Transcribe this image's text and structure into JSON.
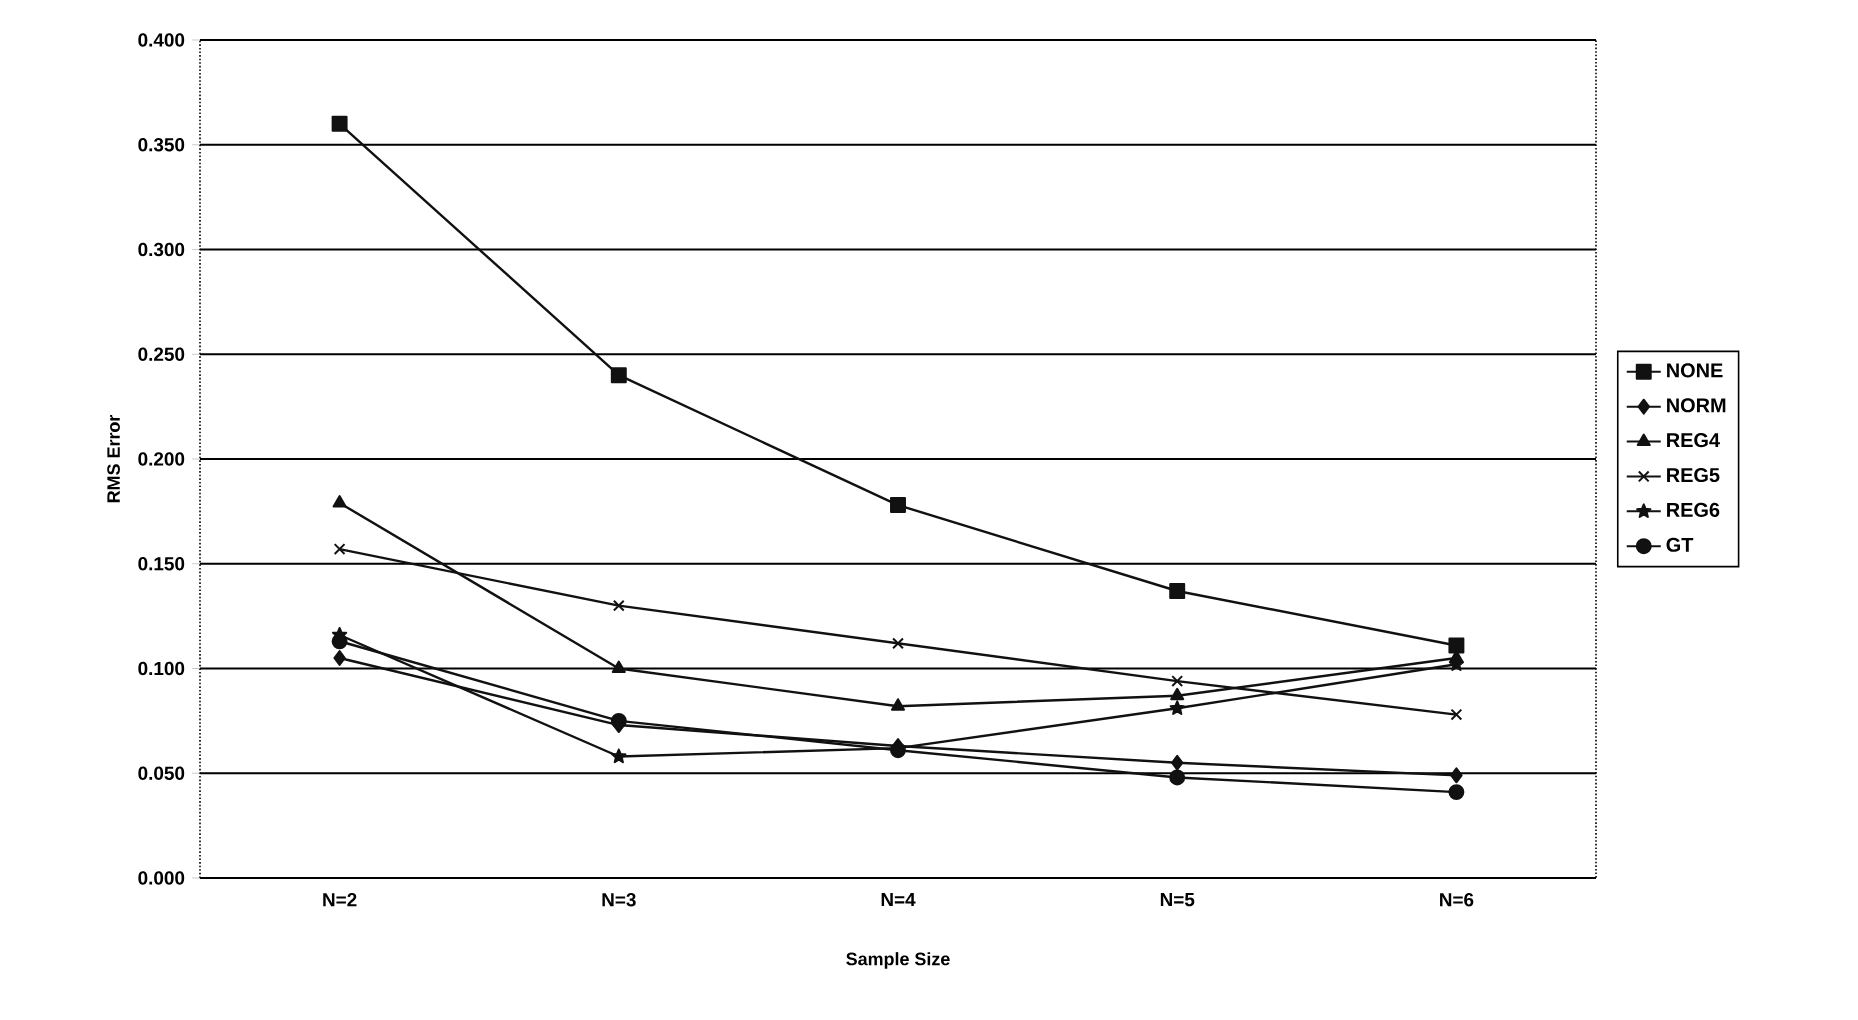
{
  "chart_data": {
    "type": "line",
    "xlabel": "Sample Size",
    "ylabel": "RMS Error",
    "categories": [
      "N=2",
      "N=3",
      "N=4",
      "N=5",
      "N=6"
    ],
    "series": [
      {
        "name": "NONE",
        "color": "#111111",
        "marker": "square",
        "values": [
          0.36,
          0.24,
          0.178,
          0.137,
          0.111
        ]
      },
      {
        "name": "NORM",
        "color": "#111111",
        "marker": "diamond",
        "values": [
          0.105,
          0.073,
          0.063,
          0.055,
          0.049
        ]
      },
      {
        "name": "REG4",
        "color": "#111111",
        "marker": "triangle",
        "values": [
          0.179,
          0.1,
          0.082,
          0.087,
          0.105
        ]
      },
      {
        "name": "REG5",
        "color": "#111111",
        "marker": "cross",
        "values": [
          0.157,
          0.13,
          0.112,
          0.094,
          0.078
        ]
      },
      {
        "name": "REG6",
        "color": "#111111",
        "marker": "star",
        "values": [
          0.116,
          0.058,
          0.062,
          0.081,
          0.102
        ]
      },
      {
        "name": "GT",
        "color": "#111111",
        "marker": "circle",
        "values": [
          0.113,
          0.075,
          0.061,
          0.048,
          0.041
        ]
      }
    ],
    "ylim": [
      0,
      0.4
    ],
    "yticks": [
      {
        "value": 0,
        "label": "0.000"
      },
      {
        "value": 0.05,
        "label": "0.050"
      },
      {
        "value": 0.1,
        "label": "0.100"
      },
      {
        "value": 0.15,
        "label": "0.150"
      },
      {
        "value": 0.2,
        "label": "0.200"
      },
      {
        "value": 0.25,
        "label": "0.250"
      },
      {
        "value": 0.3,
        "label": "0.300"
      },
      {
        "value": 0.35,
        "label": "0.350"
      },
      {
        "value": 0.4,
        "label": "0.400"
      }
    ],
    "grid": "y",
    "legend": "right",
    "line_style": "solid"
  }
}
